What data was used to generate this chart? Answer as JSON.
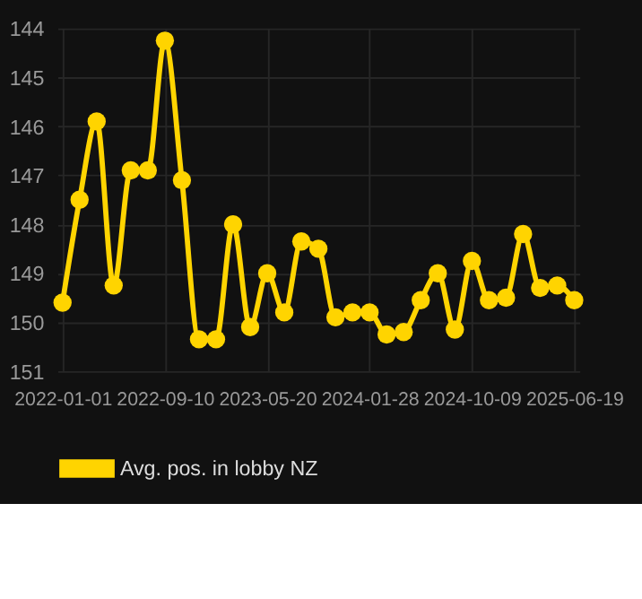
{
  "chart_data": {
    "type": "line",
    "categories": [
      "2022-01-01",
      null,
      null,
      null,
      null,
      null,
      "2022-09-10",
      null,
      null,
      null,
      null,
      null,
      "2023-05-20",
      null,
      null,
      null,
      null,
      null,
      "2024-01-28",
      null,
      null,
      null,
      null,
      null,
      "2024-10-09",
      null,
      null,
      null,
      null,
      null,
      "2025-06-19"
    ],
    "series": [
      {
        "name": "Avg. pos. in lobby NZ",
        "color": "#ffd400",
        "values": [
          149.6,
          147.5,
          145.9,
          149.25,
          146.9,
          146.9,
          144.25,
          147.1,
          150.35,
          150.35,
          148.0,
          150.1,
          149.0,
          149.8,
          148.35,
          148.5,
          149.9,
          149.8,
          149.8,
          150.25,
          150.2,
          149.55,
          149.0,
          150.15,
          148.75,
          149.55,
          149.5,
          148.2,
          149.3,
          149.25,
          149.55
        ]
      }
    ],
    "ylim": [
      151,
      144
    ],
    "yticks": [
      144,
      145,
      146,
      147,
      148,
      149,
      150,
      151
    ],
    "grid": true,
    "legend": "bottom",
    "marker": "circle",
    "line_style": "solid"
  }
}
